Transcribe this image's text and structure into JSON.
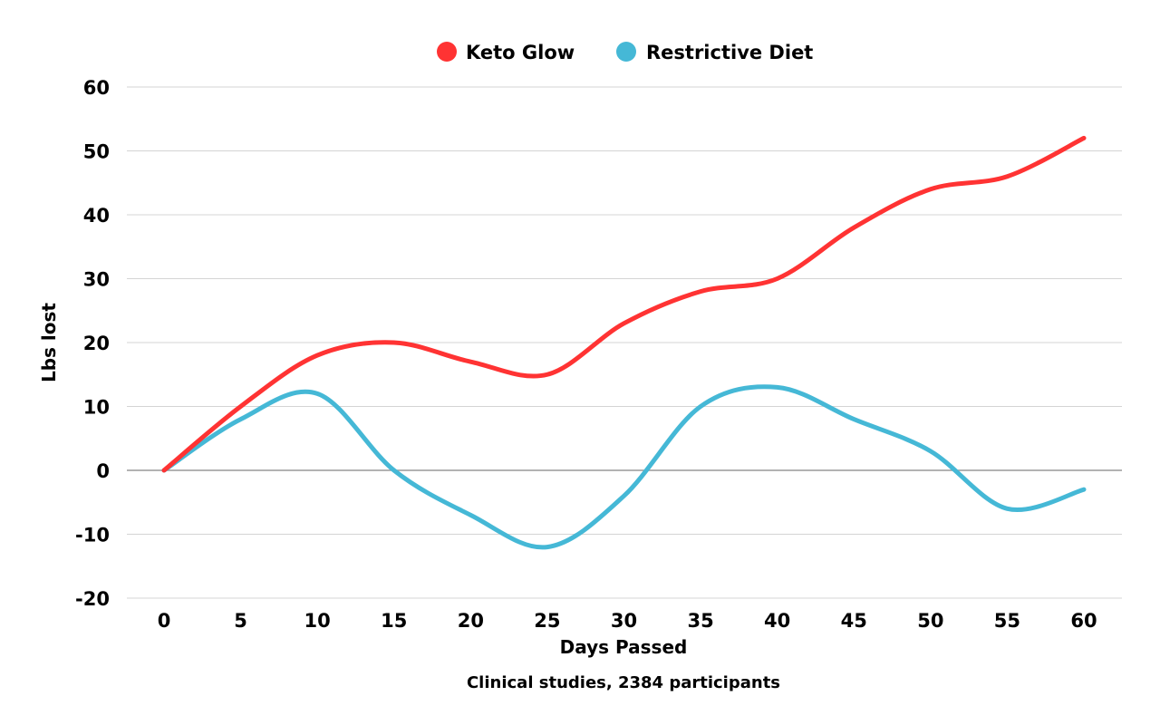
{
  "chart_data": {
    "type": "line",
    "title": "",
    "xlabel": "Days Passed",
    "ylabel": "Lbs lost",
    "caption": "Clinical studies, 2384 participants",
    "x": [
      0,
      5,
      10,
      15,
      20,
      25,
      30,
      35,
      40,
      45,
      50,
      55,
      60
    ],
    "xticks": [
      "0",
      "5",
      "10",
      "15",
      "20",
      "25",
      "30",
      "35",
      "40",
      "45",
      "50",
      "55",
      "60"
    ],
    "yticks": [
      "60",
      "50",
      "40",
      "30",
      "20",
      "10",
      "0",
      "-10",
      "-20"
    ],
    "ylim": [
      -20,
      60
    ],
    "grid": true,
    "legend_position": "top-center",
    "series": [
      {
        "name": "Keto Glow",
        "color": "#ff3333",
        "values": [
          0,
          10,
          18,
          20,
          17,
          15,
          23,
          28,
          30,
          38,
          44,
          46,
          52
        ]
      },
      {
        "name": "Restrictive Diet",
        "color": "#45b8d6",
        "values": [
          0,
          8,
          12,
          0,
          -7,
          -12,
          -4,
          10,
          13,
          8,
          3,
          -6,
          -3
        ]
      }
    ]
  }
}
